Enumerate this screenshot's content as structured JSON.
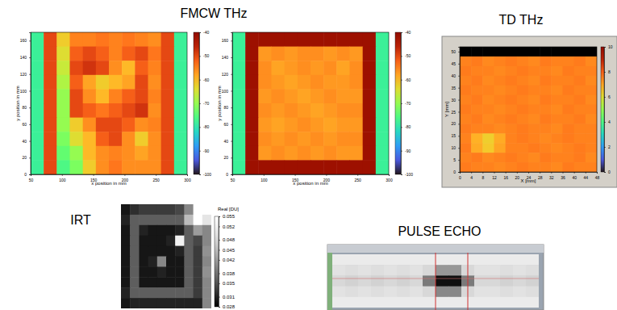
{
  "chart_data": [
    {
      "type": "heatmap",
      "title": "FMCW THz",
      "color": "jet",
      "x_label": "x position in mm",
      "y_label": "y position in mm",
      "xlim": [
        50,
        300
      ],
      "xticks": [
        50,
        100,
        150,
        200,
        250,
        300
      ],
      "ylim": [
        0,
        170
      ],
      "yticks": [
        0,
        20,
        40,
        60,
        80,
        100,
        120,
        140,
        160
      ],
      "color_range": [
        -100,
        -40
      ],
      "colorbar_ticks": [
        -100,
        -90,
        -80,
        -70,
        -60,
        -50,
        -40
      ],
      "cells": [
        [
          -78,
          -50,
          -62,
          -55,
          -55,
          -54,
          -55,
          -54,
          -55,
          -56,
          -50,
          -78
        ],
        [
          -78,
          -50,
          -64,
          -52,
          -50,
          -52,
          -55,
          -52,
          -50,
          -54,
          -50,
          -78
        ],
        [
          -78,
          -50,
          -66,
          -50,
          -48,
          -50,
          -56,
          -60,
          -52,
          -55,
          -50,
          -78
        ],
        [
          -78,
          -50,
          -68,
          -52,
          -58,
          -62,
          -60,
          -58,
          -50,
          -56,
          -50,
          -78
        ],
        [
          -78,
          -50,
          -70,
          -50,
          -56,
          -60,
          -55,
          -52,
          -50,
          -55,
          -50,
          -78
        ],
        [
          -78,
          -50,
          -70,
          -50,
          -52,
          -54,
          -52,
          -50,
          -48,
          -56,
          -50,
          -78
        ],
        [
          -78,
          -50,
          -70,
          -62,
          -56,
          -50,
          -50,
          -52,
          -56,
          -55,
          -50,
          -78
        ],
        [
          -78,
          -50,
          -72,
          -64,
          -60,
          -52,
          -50,
          -56,
          -62,
          -56,
          -50,
          -78
        ],
        [
          -78,
          -50,
          -74,
          -70,
          -60,
          -56,
          -55,
          -56,
          -58,
          -56,
          -50,
          -78
        ],
        [
          -78,
          -50,
          -76,
          -72,
          -62,
          -56,
          -54,
          -56,
          -56,
          -56,
          -50,
          -78
        ]
      ]
    },
    {
      "type": "heatmap",
      "color": "jet",
      "x_label": "x position in mm",
      "y_label": "y position in mm",
      "xlim": [
        50,
        300
      ],
      "xticks": [
        50,
        100,
        150,
        200,
        250,
        300
      ],
      "ylim": [
        0,
        170
      ],
      "yticks": [
        0,
        20,
        40,
        60,
        80,
        100,
        120,
        140,
        160
      ],
      "color_range": [
        -100,
        -40
      ],
      "colorbar_ticks": [
        -100,
        -90,
        -80,
        -70,
        -60,
        -50,
        -40
      ],
      "cells": [
        [
          -78,
          -43,
          -43,
          -43,
          -43,
          -43,
          -43,
          -43,
          -43,
          -43,
          -43,
          -78
        ],
        [
          -78,
          -43,
          -57,
          -56,
          -57,
          -56,
          -56,
          -57,
          -56,
          -57,
          -43,
          -78
        ],
        [
          -78,
          -43,
          -56,
          -58,
          -57,
          -56,
          -57,
          -56,
          -58,
          -56,
          -43,
          -78
        ],
        [
          -78,
          -43,
          -56,
          -57,
          -58,
          -57,
          -56,
          -57,
          -57,
          -56,
          -43,
          -78
        ],
        [
          -78,
          -43,
          -57,
          -56,
          -57,
          -58,
          -57,
          -56,
          -57,
          -57,
          -43,
          -78
        ],
        [
          -78,
          -43,
          -56,
          -57,
          -56,
          -57,
          -58,
          -57,
          -56,
          -56,
          -43,
          -78
        ],
        [
          -78,
          -43,
          -57,
          -58,
          -57,
          -56,
          -57,
          -58,
          -57,
          -57,
          -43,
          -78
        ],
        [
          -78,
          -43,
          -56,
          -57,
          -56,
          -57,
          -56,
          -57,
          -56,
          -56,
          -43,
          -78
        ],
        [
          -78,
          -43,
          -57,
          -56,
          -57,
          -56,
          -57,
          -56,
          -57,
          -57,
          -43,
          -78
        ],
        [
          -78,
          -43,
          -43,
          -43,
          -43,
          -43,
          -43,
          -43,
          -43,
          -43,
          -43,
          -78
        ]
      ]
    },
    {
      "type": "heatmap",
      "title": "TD THz",
      "color": "jet",
      "x_label": "X [mm]",
      "y_label": "Y [mm]",
      "xlim": [
        0,
        48
      ],
      "xticks": [
        0,
        4,
        8,
        12,
        16,
        20,
        24,
        28,
        32,
        36,
        40,
        44,
        48
      ],
      "ylim": [
        0,
        52
      ],
      "yticks": [
        0,
        5,
        10,
        15,
        20,
        25,
        30,
        35,
        40,
        45,
        50
      ],
      "color_range": [
        0,
        10
      ],
      "colorbar_ticks": [
        0,
        2,
        4,
        6,
        8,
        10
      ],
      "cells": [
        [
          null,
          null,
          null,
          null,
          null,
          null,
          null,
          null,
          null,
          null,
          null,
          null
        ],
        [
          7.5,
          7.6,
          7.4,
          7.5,
          7.6,
          7.5,
          7.4,
          7.6,
          7.5,
          7.5,
          7.6,
          7.4
        ],
        [
          7.6,
          7.5,
          7.5,
          7.4,
          7.5,
          7.6,
          7.5,
          7.5,
          7.4,
          7.6,
          7.5,
          7.5
        ],
        [
          7.5,
          7.6,
          7.4,
          7.5,
          7.6,
          7.5,
          7.4,
          7.6,
          7.5,
          7.5,
          7.6,
          7.4
        ],
        [
          7.6,
          7.5,
          7.5,
          7.4,
          7.5,
          7.6,
          7.5,
          7.5,
          7.4,
          7.6,
          7.5,
          7.5
        ],
        [
          7.5,
          7.6,
          7.4,
          7.5,
          7.6,
          7.5,
          7.4,
          7.6,
          7.5,
          7.5,
          7.6,
          7.4
        ],
        [
          7.6,
          7.5,
          7.5,
          7.4,
          7.5,
          7.6,
          7.5,
          7.5,
          7.4,
          7.6,
          7.5,
          7.5
        ],
        [
          7.5,
          7.6,
          7.4,
          7.5,
          7.6,
          7.5,
          7.4,
          7.6,
          7.5,
          7.5,
          7.6,
          7.4
        ],
        [
          7.6,
          7.5,
          7.5,
          7.4,
          7.5,
          7.6,
          7.5,
          7.5,
          7.4,
          7.6,
          7.5,
          7.5
        ],
        [
          7.5,
          6.8,
          6.3,
          6.9,
          7.5,
          7.6,
          7.5,
          7.4,
          7.5,
          7.6,
          7.5,
          7.5
        ],
        [
          7.6,
          6.9,
          6.4,
          7.0,
          7.5,
          7.5,
          7.6,
          7.5,
          7.4,
          7.5,
          7.6,
          7.5
        ],
        [
          7.5,
          7.6,
          7.4,
          7.5,
          7.6,
          7.5,
          7.4,
          7.6,
          7.5,
          7.5,
          7.6,
          7.4
        ],
        [
          7.6,
          7.5,
          7.5,
          7.4,
          7.5,
          7.6,
          7.5,
          7.5,
          7.4,
          7.6,
          7.5,
          7.5
        ]
      ]
    },
    {
      "type": "heatmap",
      "title": "IRT",
      "color": "gray",
      "tick_labels": false,
      "color_range": [
        0.028,
        0.055
      ],
      "colorbar_label": "Real [DU]",
      "colorbar_ticks": [
        0.055,
        0.052,
        0.048,
        0.045,
        0.042,
        0.038,
        0.035,
        0.031,
        0.028
      ],
      "cells": [
        [
          0.03,
          0.032,
          0.033,
          0.033,
          0.033,
          0.033,
          0.034,
          0.04,
          0.055,
          0.055
        ],
        [
          0.031,
          0.036,
          0.036,
          0.036,
          0.036,
          0.036,
          0.036,
          0.045,
          0.055,
          0.05
        ],
        [
          0.03,
          0.036,
          0.031,
          0.03,
          0.03,
          0.03,
          0.031,
          0.036,
          0.042,
          0.04
        ],
        [
          0.03,
          0.036,
          0.03,
          0.03,
          0.03,
          0.031,
          0.052,
          0.036,
          0.034,
          0.04
        ],
        [
          0.03,
          0.036,
          0.03,
          0.03,
          0.03,
          0.03,
          0.031,
          0.036,
          0.033,
          0.041
        ],
        [
          0.03,
          0.036,
          0.03,
          0.031,
          0.04,
          0.03,
          0.03,
          0.036,
          0.033,
          0.04
        ],
        [
          0.03,
          0.036,
          0.03,
          0.03,
          0.031,
          0.03,
          0.03,
          0.036,
          0.033,
          0.041
        ],
        [
          0.03,
          0.036,
          0.03,
          0.03,
          0.03,
          0.03,
          0.03,
          0.036,
          0.033,
          0.04
        ],
        [
          0.031,
          0.036,
          0.036,
          0.036,
          0.036,
          0.036,
          0.036,
          0.036,
          0.033,
          0.04
        ],
        [
          0.03,
          0.031,
          0.031,
          0.031,
          0.031,
          0.031,
          0.031,
          0.031,
          0.031,
          0.04
        ]
      ]
    },
    {
      "type": "heatmap",
      "title": "PULSE ECHO",
      "color": "gray",
      "tick_labels": false,
      "color_range": [
        0,
        1
      ],
      "cells": [
        [
          0.85,
          0.85,
          0.85,
          0.85,
          0.85,
          0.85,
          0.85,
          0.85,
          0.85,
          0.85,
          0.85,
          0.85,
          0.85,
          0.85,
          0.85,
          0.85
        ],
        [
          0.8,
          0.78,
          0.8,
          0.78,
          0.8,
          0.78,
          0.8,
          0.75,
          0.5,
          0.5,
          0.75,
          0.8,
          0.8,
          0.78,
          0.8,
          0.78
        ],
        [
          0.75,
          0.72,
          0.75,
          0.72,
          0.75,
          0.72,
          0.75,
          0.4,
          0.05,
          0.05,
          0.4,
          0.75,
          0.75,
          0.72,
          0.75,
          0.72
        ],
        [
          0.8,
          0.78,
          0.8,
          0.78,
          0.8,
          0.78,
          0.8,
          0.75,
          0.45,
          0.45,
          0.75,
          0.8,
          0.8,
          0.78,
          0.8,
          0.78
        ],
        [
          0.85,
          0.85,
          0.85,
          0.85,
          0.85,
          0.85,
          0.85,
          0.85,
          0.85,
          0.85,
          0.85,
          0.85,
          0.85,
          0.85,
          0.85,
          0.85
        ]
      ]
    }
  ]
}
